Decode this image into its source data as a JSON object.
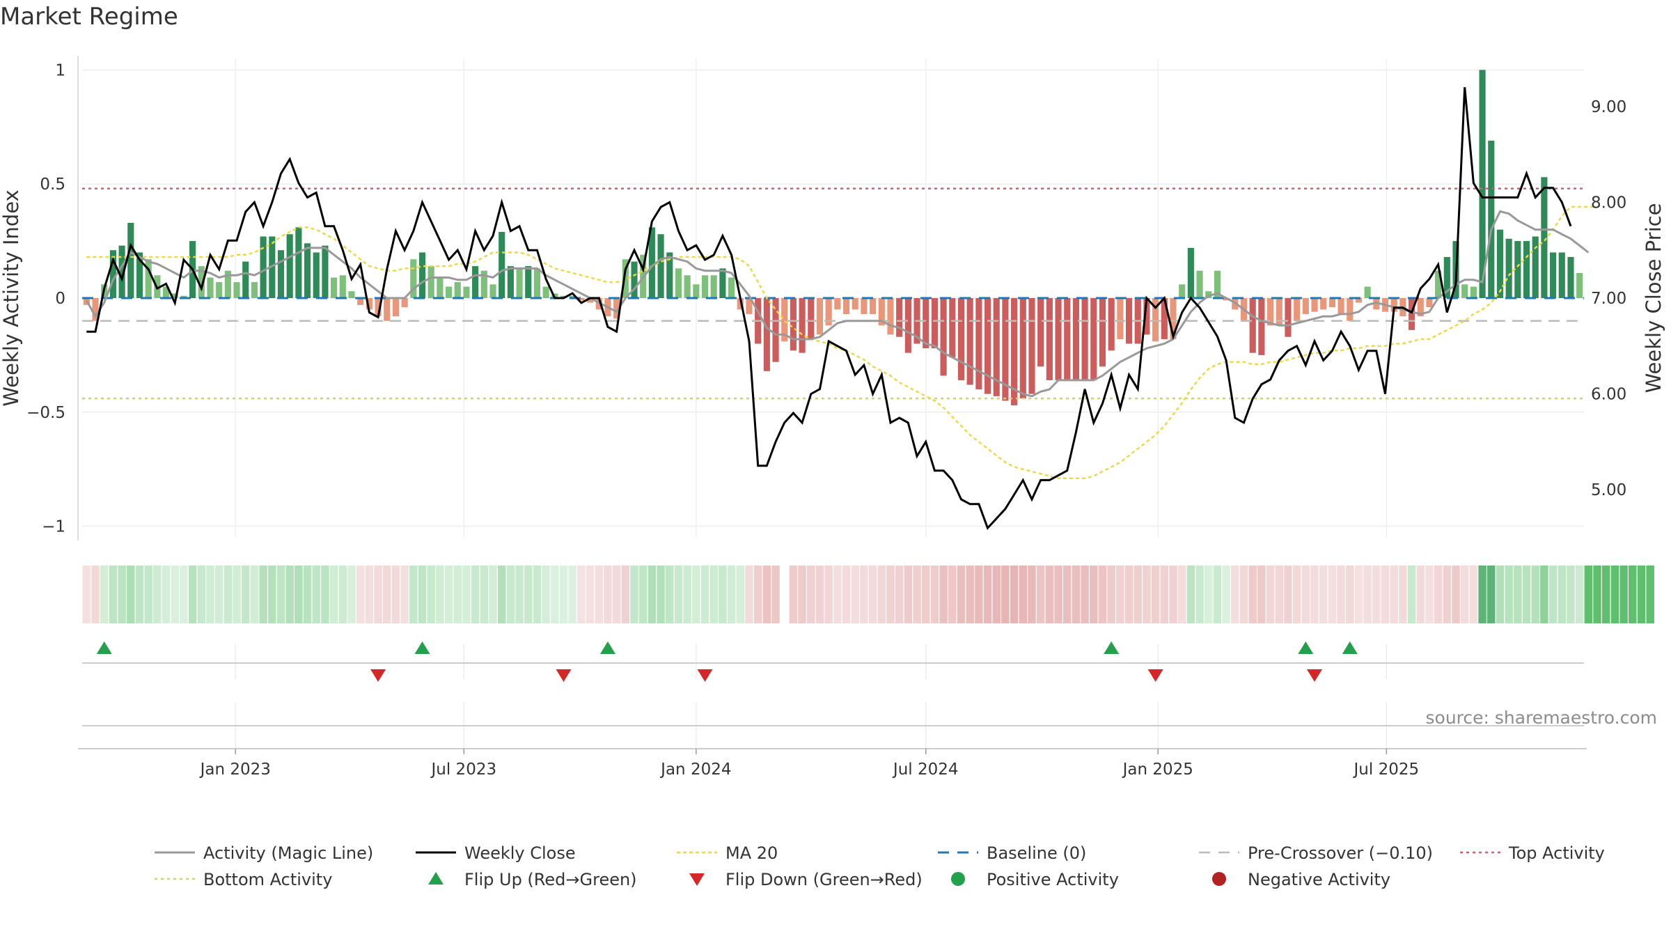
{
  "title": "Market Regime",
  "source_note": "source: sharemaestro.com",
  "colors": {
    "pos_dark": "#2e8b57",
    "pos_light": "#7dc07a",
    "neg_dark": "#cd5c5c",
    "neg_light": "#e9967a",
    "magic_line": "#999999",
    "weekly_close": "#000000",
    "ma20": "#f0d840",
    "baseline": "#1f77b4",
    "pre_crossover": "#bbbbbb",
    "top_activity": "#d06070",
    "bottom_activity": "#c5d96a",
    "flip_up": "#22a04b",
    "flip_down": "#d62728",
    "positive_dot": "#22a04b",
    "negative_dot": "#b22222"
  },
  "chart_data": {
    "type": "bar",
    "start_date": "2022-09-05",
    "frequency": "weekly",
    "y_left": {
      "label": "Weekly Activity Index",
      "range": [
        -1.05,
        1.05
      ],
      "ticks": [
        1,
        0.5,
        0,
        -0.5,
        -1
      ],
      "tick_labels": [
        "1",
        "0.5",
        "0",
        "−0.5",
        "−1"
      ]
    },
    "y_right": {
      "label": "Weekly Close Price",
      "range": [
        4.5,
        9.5
      ],
      "ticks": [
        9,
        8,
        7,
        6,
        5
      ],
      "tick_labels": [
        "9.00",
        "8.00",
        "7.00",
        "6.00",
        "5.00"
      ]
    },
    "x_ticks": [
      {
        "date": "2023-01-01",
        "label": "Jan 2023"
      },
      {
        "date": "2023-07-01",
        "label": "Jul 2023"
      },
      {
        "date": "2024-01-01",
        "label": "Jan 2024"
      },
      {
        "date": "2024-07-01",
        "label": "Jul 2024"
      },
      {
        "date": "2025-01-01",
        "label": "Jan 2025"
      },
      {
        "date": "2025-07-01",
        "label": "Jul 2025"
      }
    ],
    "reference_lines": {
      "baseline": 0,
      "pre_crossover": -0.1,
      "top_activity": 0.48,
      "bottom_activity": -0.44
    },
    "activity": [
      -0.03,
      -0.1,
      0.06,
      0.21,
      0.23,
      0.33,
      0.2,
      0.17,
      0.1,
      0.05,
      0.02,
      0.01,
      0.25,
      0.14,
      0.09,
      0.07,
      0.12,
      0.07,
      0.16,
      0.07,
      0.27,
      0.27,
      0.21,
      0.28,
      0.31,
      0.24,
      0.2,
      0.23,
      0.09,
      0.1,
      0.03,
      -0.03,
      -0.05,
      -0.08,
      -0.1,
      -0.08,
      -0.04,
      0.17,
      0.2,
      0.14,
      0.09,
      0.05,
      0.07,
      0.05,
      0.14,
      0.12,
      0.06,
      0.29,
      0.14,
      0.13,
      0.14,
      0.13,
      0.05,
      0.02,
      0.01,
      0.01,
      -0.01,
      -0.02,
      -0.05,
      -0.08,
      -0.09,
      0.17,
      0.16,
      0.19,
      0.31,
      0.28,
      0.2,
      0.13,
      0.1,
      0.06,
      0.1,
      0.1,
      0.13,
      0.09,
      -0.05,
      -0.07,
      -0.2,
      -0.32,
      -0.28,
      -0.19,
      -0.23,
      -0.24,
      -0.18,
      -0.16,
      -0.12,
      -0.05,
      -0.07,
      -0.05,
      -0.07,
      -0.07,
      -0.12,
      -0.16,
      -0.17,
      -0.24,
      -0.2,
      -0.22,
      -0.22,
      -0.34,
      -0.26,
      -0.36,
      -0.38,
      -0.4,
      -0.42,
      -0.43,
      -0.45,
      -0.47,
      -0.44,
      -0.42,
      -0.3,
      -0.36,
      -0.36,
      -0.36,
      -0.36,
      -0.36,
      -0.36,
      -0.3,
      -0.23,
      -0.18,
      -0.2,
      -0.2,
      -0.16,
      -0.19,
      -0.18,
      -0.18,
      0.06,
      0.22,
      0.12,
      0.03,
      0.12,
      -0.01,
      -0.05,
      -0.1,
      -0.24,
      -0.25,
      -0.12,
      -0.12,
      -0.17,
      -0.1,
      -0.07,
      -0.06,
      -0.05,
      -0.04,
      -0.07,
      -0.1,
      -0.02,
      0.05,
      -0.05,
      -0.06,
      -0.06,
      -0.08,
      -0.14,
      -0.08,
      -0.04,
      0.12,
      0.18,
      0.25,
      0.06,
      0.05,
      1.0,
      0.69,
      0.3,
      0.26,
      0.25,
      0.25,
      0.27,
      0.53,
      0.2,
      0.2,
      0.18,
      0.11
    ],
    "magic_line": [
      -0.01,
      -0.08,
      -0.02,
      0.08,
      0.14,
      0.2,
      0.18,
      0.16,
      0.15,
      0.13,
      0.11,
      0.09,
      0.12,
      0.12,
      0.11,
      0.09,
      0.1,
      0.1,
      0.11,
      0.1,
      0.12,
      0.14,
      0.16,
      0.18,
      0.2,
      0.22,
      0.22,
      0.22,
      0.19,
      0.16,
      0.13,
      0.09,
      0.06,
      0.03,
      0.0,
      0.0,
      0.0,
      0.04,
      0.07,
      0.09,
      0.09,
      0.09,
      0.08,
      0.08,
      0.1,
      0.1,
      0.09,
      0.12,
      0.13,
      0.13,
      0.13,
      0.13,
      0.1,
      0.08,
      0.06,
      0.04,
      0.02,
      0.0,
      -0.02,
      -0.04,
      -0.06,
      0.0,
      0.04,
      0.09,
      0.14,
      0.17,
      0.18,
      0.17,
      0.16,
      0.13,
      0.12,
      0.12,
      0.12,
      0.11,
      0.06,
      0.01,
      -0.06,
      -0.13,
      -0.16,
      -0.16,
      -0.18,
      -0.18,
      -0.18,
      -0.17,
      -0.14,
      -0.11,
      -0.1,
      -0.1,
      -0.1,
      -0.1,
      -0.1,
      -0.12,
      -0.13,
      -0.15,
      -0.17,
      -0.2,
      -0.21,
      -0.24,
      -0.26,
      -0.28,
      -0.3,
      -0.32,
      -0.34,
      -0.36,
      -0.38,
      -0.4,
      -0.42,
      -0.43,
      -0.41,
      -0.4,
      -0.36,
      -0.36,
      -0.36,
      -0.36,
      -0.36,
      -0.34,
      -0.31,
      -0.28,
      -0.26,
      -0.24,
      -0.22,
      -0.21,
      -0.2,
      -0.18,
      -0.12,
      -0.06,
      -0.02,
      0.01,
      0.02,
      0.0,
      -0.02,
      -0.05,
      -0.08,
      -0.1,
      -0.11,
      -0.12,
      -0.12,
      -0.11,
      -0.1,
      -0.09,
      -0.08,
      -0.08,
      -0.07,
      -0.07,
      -0.06,
      -0.03,
      -0.02,
      -0.03,
      -0.04,
      -0.05,
      -0.06,
      -0.07,
      -0.06,
      0.0,
      0.03,
      0.06,
      0.08,
      0.08,
      0.07,
      0.3,
      0.38,
      0.37,
      0.34,
      0.32,
      0.3,
      0.3,
      0.3,
      0.28,
      0.26,
      0.23,
      0.2
    ],
    "weekly_close": [
      6.65,
      6.65,
      7.1,
      7.4,
      7.2,
      7.55,
      7.4,
      7.3,
      7.1,
      7.15,
      6.95,
      7.4,
      7.3,
      7.1,
      7.45,
      7.3,
      7.6,
      7.6,
      7.9,
      8.0,
      7.75,
      8.0,
      8.3,
      8.45,
      8.2,
      8.05,
      8.1,
      7.75,
      7.75,
      7.5,
      7.2,
      7.35,
      6.85,
      6.8,
      7.3,
      7.7,
      7.5,
      7.7,
      8.0,
      7.8,
      7.6,
      7.4,
      7.5,
      7.3,
      7.7,
      7.5,
      7.65,
      8.0,
      7.7,
      7.75,
      7.5,
      7.5,
      7.2,
      7.0,
      7.0,
      7.05,
      6.95,
      7.0,
      7.0,
      6.7,
      6.65,
      7.3,
      7.5,
      7.3,
      7.8,
      7.95,
      8.0,
      7.7,
      7.5,
      7.55,
      7.4,
      7.45,
      7.65,
      7.45,
      7.0,
      6.55,
      5.25,
      5.25,
      5.5,
      5.7,
      5.8,
      5.7,
      6.0,
      6.05,
      6.55,
      6.5,
      6.45,
      6.2,
      6.3,
      6.0,
      6.2,
      5.7,
      5.75,
      5.7,
      5.35,
      5.5,
      5.2,
      5.2,
      5.1,
      4.9,
      4.85,
      4.85,
      4.6,
      4.7,
      4.8,
      4.95,
      5.1,
      4.9,
      5.1,
      5.1,
      5.15,
      5.2,
      5.6,
      6.05,
      5.7,
      5.9,
      6.2,
      5.85,
      6.2,
      6.05,
      7.0,
      6.9,
      7.0,
      6.6,
      6.85,
      7.0,
      6.9,
      6.75,
      6.6,
      6.35,
      5.75,
      5.7,
      5.95,
      6.1,
      6.15,
      6.35,
      6.45,
      6.5,
      6.3,
      6.55,
      6.35,
      6.45,
      6.65,
      6.5,
      6.25,
      6.45,
      6.45,
      6.0,
      6.9,
      6.9,
      6.85,
      7.1,
      7.2,
      7.35,
      6.85,
      7.15,
      9.2,
      8.2,
      8.05,
      8.05,
      8.05,
      8.05,
      8.05,
      8.3,
      8.05,
      8.15,
      8.15,
      8.0,
      7.75
    ],
    "ma20": [
      0.18,
      0.18,
      0.18,
      0.18,
      0.18,
      0.18,
      0.18,
      0.18,
      0.18,
      0.18,
      0.18,
      0.18,
      0.18,
      0.18,
      0.18,
      0.18,
      0.18,
      0.19,
      0.19,
      0.2,
      0.22,
      0.24,
      0.27,
      0.29,
      0.31,
      0.31,
      0.3,
      0.28,
      0.26,
      0.23,
      0.2,
      0.17,
      0.14,
      0.13,
      0.12,
      0.12,
      0.13,
      0.13,
      0.14,
      0.14,
      0.14,
      0.14,
      0.15,
      0.15,
      0.16,
      0.18,
      0.2,
      0.2,
      0.2,
      0.2,
      0.19,
      0.17,
      0.15,
      0.13,
      0.12,
      0.11,
      0.1,
      0.09,
      0.08,
      0.07,
      0.07,
      0.08,
      0.1,
      0.12,
      0.14,
      0.16,
      0.17,
      0.18,
      0.18,
      0.18,
      0.18,
      0.18,
      0.18,
      0.18,
      0.17,
      0.14,
      0.07,
      0.0,
      -0.05,
      -0.1,
      -0.13,
      -0.16,
      -0.18,
      -0.19,
      -0.2,
      -0.22,
      -0.23,
      -0.25,
      -0.27,
      -0.3,
      -0.32,
      -0.34,
      -0.37,
      -0.39,
      -0.41,
      -0.43,
      -0.45,
      -0.48,
      -0.52,
      -0.56,
      -0.6,
      -0.63,
      -0.66,
      -0.69,
      -0.72,
      -0.74,
      -0.75,
      -0.76,
      -0.77,
      -0.78,
      -0.79,
      -0.79,
      -0.79,
      -0.79,
      -0.78,
      -0.76,
      -0.74,
      -0.72,
      -0.69,
      -0.66,
      -0.63,
      -0.6,
      -0.56,
      -0.51,
      -0.46,
      -0.4,
      -0.35,
      -0.31,
      -0.29,
      -0.28,
      -0.28,
      -0.28,
      -0.29,
      -0.29,
      -0.28,
      -0.28,
      -0.27,
      -0.26,
      -0.25,
      -0.24,
      -0.24,
      -0.23,
      -0.23,
      -0.22,
      -0.22,
      -0.21,
      -0.21,
      -0.21,
      -0.2,
      -0.2,
      -0.19,
      -0.18,
      -0.18,
      -0.16,
      -0.14,
      -0.12,
      -0.1,
      -0.07,
      -0.05,
      -0.02,
      0.03,
      0.1,
      0.14,
      0.18,
      0.22,
      0.25,
      0.3,
      0.36,
      0.4,
      0.4,
      0.4,
      0.4
    ],
    "regime_strip": [
      -1,
      -1,
      1,
      1,
      1,
      1,
      1,
      1,
      1,
      1,
      1,
      1,
      1,
      1,
      1,
      1,
      1,
      1,
      1,
      1,
      1,
      1,
      1,
      1,
      1,
      1,
      1,
      1,
      1,
      1,
      1,
      -1,
      -1,
      -1,
      -1,
      -1,
      -1,
      1,
      1,
      1,
      1,
      1,
      1,
      1,
      1,
      1,
      1,
      1,
      1,
      1,
      1,
      1,
      1,
      1,
      1,
      1,
      -1,
      -1,
      -1,
      -1,
      -1,
      -1,
      1,
      1,
      1,
      1,
      1,
      1,
      1,
      1,
      1,
      1,
      1,
      1,
      1,
      -1,
      -1,
      -1,
      -1,
      0,
      -1,
      -1,
      -1,
      -1,
      -1,
      -1,
      -1,
      -1,
      -1,
      -1,
      -1,
      -1,
      -1,
      -1,
      -1,
      -1,
      -1,
      -1,
      -1,
      -1,
      -1,
      -1,
      -1,
      -1,
      -1,
      -1,
      -1,
      -1,
      -1,
      -1,
      -1,
      -1,
      -1,
      -1,
      -1,
      -1,
      -1,
      -1,
      -1,
      -1,
      -1,
      -1,
      -1,
      -1,
      -1,
      1,
      1,
      1,
      1,
      1,
      -1,
      -1,
      -1,
      -1,
      -1,
      -1,
      -1,
      -1,
      -1,
      -1,
      -1,
      -1,
      -1,
      -1,
      -1,
      -1,
      -1,
      -1,
      -1,
      -1,
      1,
      -1,
      -1,
      -1,
      -1,
      -1,
      -1,
      -1,
      1,
      1,
      1,
      1,
      1,
      1,
      1,
      1,
      1,
      1,
      1,
      1,
      1,
      1,
      1,
      1,
      1,
      1,
      1,
      1
    ],
    "flip_up_dates": [
      "2022-09-19",
      "2023-05-29",
      "2023-10-23",
      "2024-11-25",
      "2025-04-28",
      "2025-06-02"
    ],
    "flip_down_dates": [
      "2023-04-24",
      "2023-09-18",
      "2024-01-08",
      "2024-12-30",
      "2025-05-05"
    ],
    "legend": [
      {
        "key": "magic",
        "label": "Activity (Magic Line)"
      },
      {
        "key": "close",
        "label": "Weekly Close"
      },
      {
        "key": "ma20",
        "label": "MA 20"
      },
      {
        "key": "baseline",
        "label": "Baseline (0)"
      },
      {
        "key": "precross",
        "label": "Pre-Crossover (−0.10)"
      },
      {
        "key": "top",
        "label": "Top Activity"
      },
      {
        "key": "bottom",
        "label": "Bottom Activity"
      },
      {
        "key": "flipup",
        "label": "Flip Up (Red→Green)"
      },
      {
        "key": "flipdown",
        "label": "Flip Down (Green→Red)"
      },
      {
        "key": "posdot",
        "label": "Positive Activity"
      },
      {
        "key": "negdot",
        "label": "Negative Activity"
      }
    ]
  }
}
